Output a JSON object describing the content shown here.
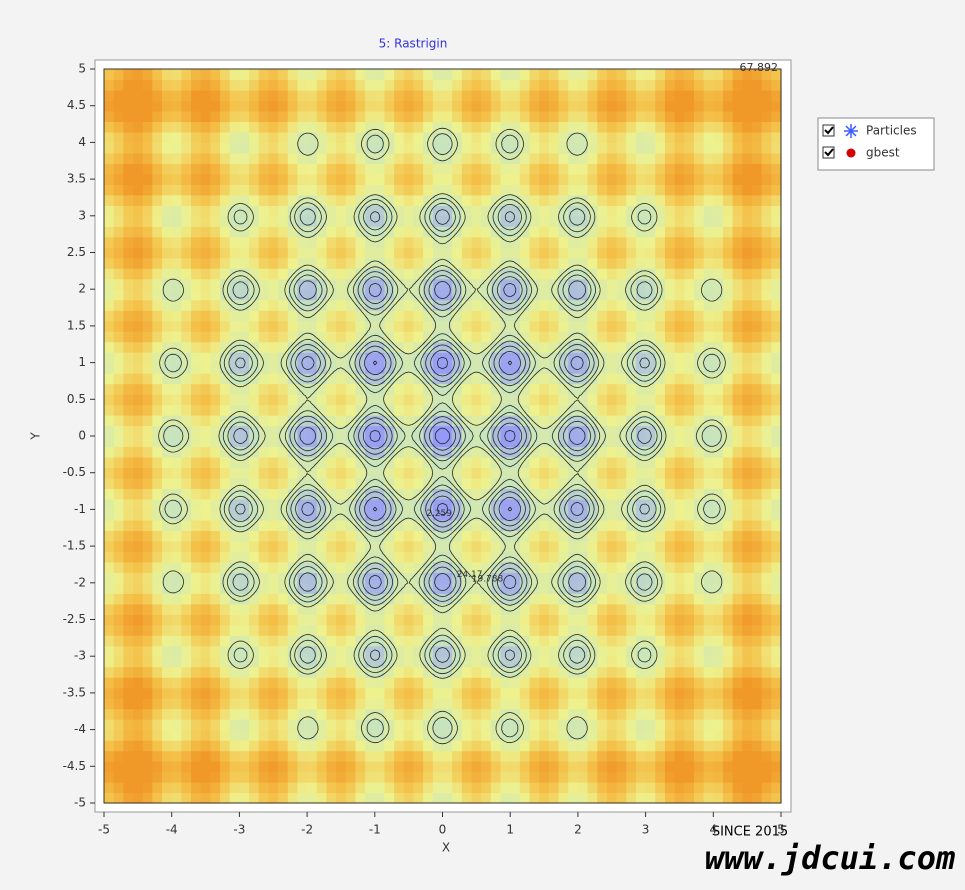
{
  "chart_data": {
    "type": "contour",
    "title": "5: Rastrigin",
    "x_label": "X",
    "y_label": "Y",
    "xlim": [
      -5,
      5
    ],
    "ylim": [
      -5,
      5
    ],
    "xticks": [
      -5,
      -4,
      -3,
      -2,
      -1,
      0,
      1,
      2,
      3,
      4,
      5
    ],
    "yticks": [
      -5,
      -4.5,
      -4,
      -3.5,
      -3,
      -2.5,
      -2,
      -1.5,
      -1,
      -0.5,
      0,
      0.5,
      1,
      1.5,
      2,
      2.5,
      3,
      3.5,
      4,
      4.5,
      5
    ],
    "levels": [
      2.259,
      6.641,
      11.023,
      15.406,
      19.788,
      24.17
    ],
    "zmax": 67.892,
    "colormap": [
      "#8f90ff",
      "#c6e4c0",
      "#eef28e",
      "#f4c24a",
      "#f09828"
    ],
    "series": [
      {
        "name": "Particles",
        "color": "#3a5cff",
        "marker": "asterisk"
      },
      {
        "name": "gbest",
        "color": "#d40000",
        "marker": "circle"
      }
    ],
    "legend": "upper right outside"
  },
  "watermark": {
    "since": "SINCE 2015",
    "site": "www.jdcui.com"
  }
}
